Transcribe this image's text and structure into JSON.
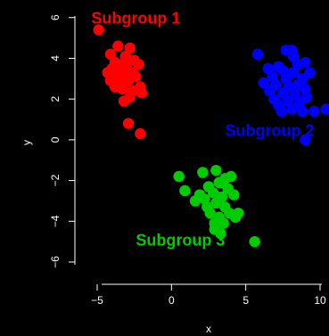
{
  "chart_data": {
    "type": "scatter",
    "title": "",
    "xlabel": "x",
    "ylabel": "y",
    "xlim": [
      -6.5,
      10.6
    ],
    "ylim": [
      -6.7,
      6.6
    ],
    "x_ticks": [
      -5,
      0,
      5,
      10
    ],
    "y_ticks": [
      -6,
      -4,
      -2,
      0,
      2,
      4,
      6
    ],
    "x_tick_labels": [
      "−5",
      "0",
      "5",
      "10"
    ],
    "y_tick_labels": [
      "−6",
      "−4",
      "−2",
      "0",
      "2",
      "4",
      "6"
    ],
    "grid": false,
    "legend": "none",
    "series": [
      {
        "name": "Subgroup 1",
        "color": "#ff0000",
        "label_at": [
          -2.4,
          5.7
        ],
        "points": [
          [
            -4.9,
            5.4
          ],
          [
            -2.8,
            4.5
          ],
          [
            -3.6,
            4.6
          ],
          [
            -3.1,
            4.1
          ],
          [
            -2.9,
            3.9
          ],
          [
            -4.1,
            4.2
          ],
          [
            -3.4,
            3.7
          ],
          [
            -3.0,
            3.5
          ],
          [
            -2.5,
            3.9
          ],
          [
            -2.2,
            3.7
          ],
          [
            -3.8,
            3.8
          ],
          [
            -4.0,
            3.5
          ],
          [
            -3.3,
            3.3
          ],
          [
            -2.6,
            3.3
          ],
          [
            -4.3,
            3.3
          ],
          [
            -3.7,
            3.1
          ],
          [
            -3.5,
            2.9
          ],
          [
            -2.9,
            2.9
          ],
          [
            -2.4,
            3.1
          ],
          [
            -4.1,
            2.9
          ],
          [
            -3.8,
            2.6
          ],
          [
            -3.3,
            2.5
          ],
          [
            -2.6,
            2.4
          ],
          [
            -2.0,
            2.3
          ],
          [
            -2.8,
            2.1
          ],
          [
            -2.1,
            2.6
          ],
          [
            -3.2,
            1.9
          ],
          [
            -2.9,
            0.8
          ],
          [
            -2.1,
            0.3
          ],
          [
            -3.6,
            3.3
          ],
          [
            -3.0,
            3.1
          ]
        ]
      },
      {
        "name": "Subgroup 2",
        "color": "#0000ff",
        "label_at": [
          6.6,
          0.2
        ],
        "points": [
          [
            5.8,
            4.2
          ],
          [
            7.7,
            4.4
          ],
          [
            8.1,
            4.4
          ],
          [
            8.2,
            4.1
          ],
          [
            7.2,
            3.6
          ],
          [
            8.5,
            3.7
          ],
          [
            9.0,
            3.8
          ],
          [
            6.5,
            3.5
          ],
          [
            7.5,
            3.4
          ],
          [
            8.2,
            3.3
          ],
          [
            9.3,
            3.3
          ],
          [
            6.8,
            3.1
          ],
          [
            7.7,
            3.0
          ],
          [
            8.8,
            3.0
          ],
          [
            6.2,
            2.8
          ],
          [
            7.0,
            2.7
          ],
          [
            7.9,
            2.6
          ],
          [
            8.5,
            2.7
          ],
          [
            9.0,
            2.5
          ],
          [
            6.6,
            2.4
          ],
          [
            7.5,
            2.3
          ],
          [
            8.3,
            2.2
          ],
          [
            9.1,
            2.1
          ],
          [
            6.9,
            2.0
          ],
          [
            7.8,
            1.9
          ],
          [
            8.6,
            1.8
          ],
          [
            7.2,
            1.7
          ],
          [
            8.1,
            1.5
          ],
          [
            8.8,
            1.4
          ],
          [
            7.4,
            1.4
          ],
          [
            9.6,
            1.4
          ],
          [
            10.4,
            1.5
          ],
          [
            9.0,
            0.0
          ]
        ]
      },
      {
        "name": "Subgroup 3",
        "color": "#00cc00",
        "label_at": [
          0.6,
          -5.2
        ],
        "points": [
          [
            0.5,
            -1.8
          ],
          [
            0.9,
            -2.5
          ],
          [
            2.1,
            -1.6
          ],
          [
            3.0,
            -1.5
          ],
          [
            3.6,
            -1.9
          ],
          [
            4.0,
            -1.8
          ],
          [
            2.5,
            -2.3
          ],
          [
            3.2,
            -2.1
          ],
          [
            3.8,
            -2.4
          ],
          [
            1.6,
            -3.0
          ],
          [
            2.2,
            -2.9
          ],
          [
            2.8,
            -2.6
          ],
          [
            3.4,
            -2.8
          ],
          [
            4.2,
            -2.7
          ],
          [
            2.4,
            -3.3
          ],
          [
            3.0,
            -3.1
          ],
          [
            3.6,
            -3.3
          ],
          [
            2.6,
            -3.6
          ],
          [
            3.2,
            -3.8
          ],
          [
            3.9,
            -3.6
          ],
          [
            4.5,
            -3.6
          ],
          [
            2.9,
            -4.1
          ],
          [
            3.5,
            -4.1
          ],
          [
            4.3,
            -3.8
          ],
          [
            2.9,
            -4.4
          ],
          [
            3.3,
            -4.6
          ],
          [
            5.6,
            -5.0
          ],
          [
            1.9,
            -2.7
          ],
          [
            3.4,
            -2.1
          ]
        ]
      }
    ]
  }
}
